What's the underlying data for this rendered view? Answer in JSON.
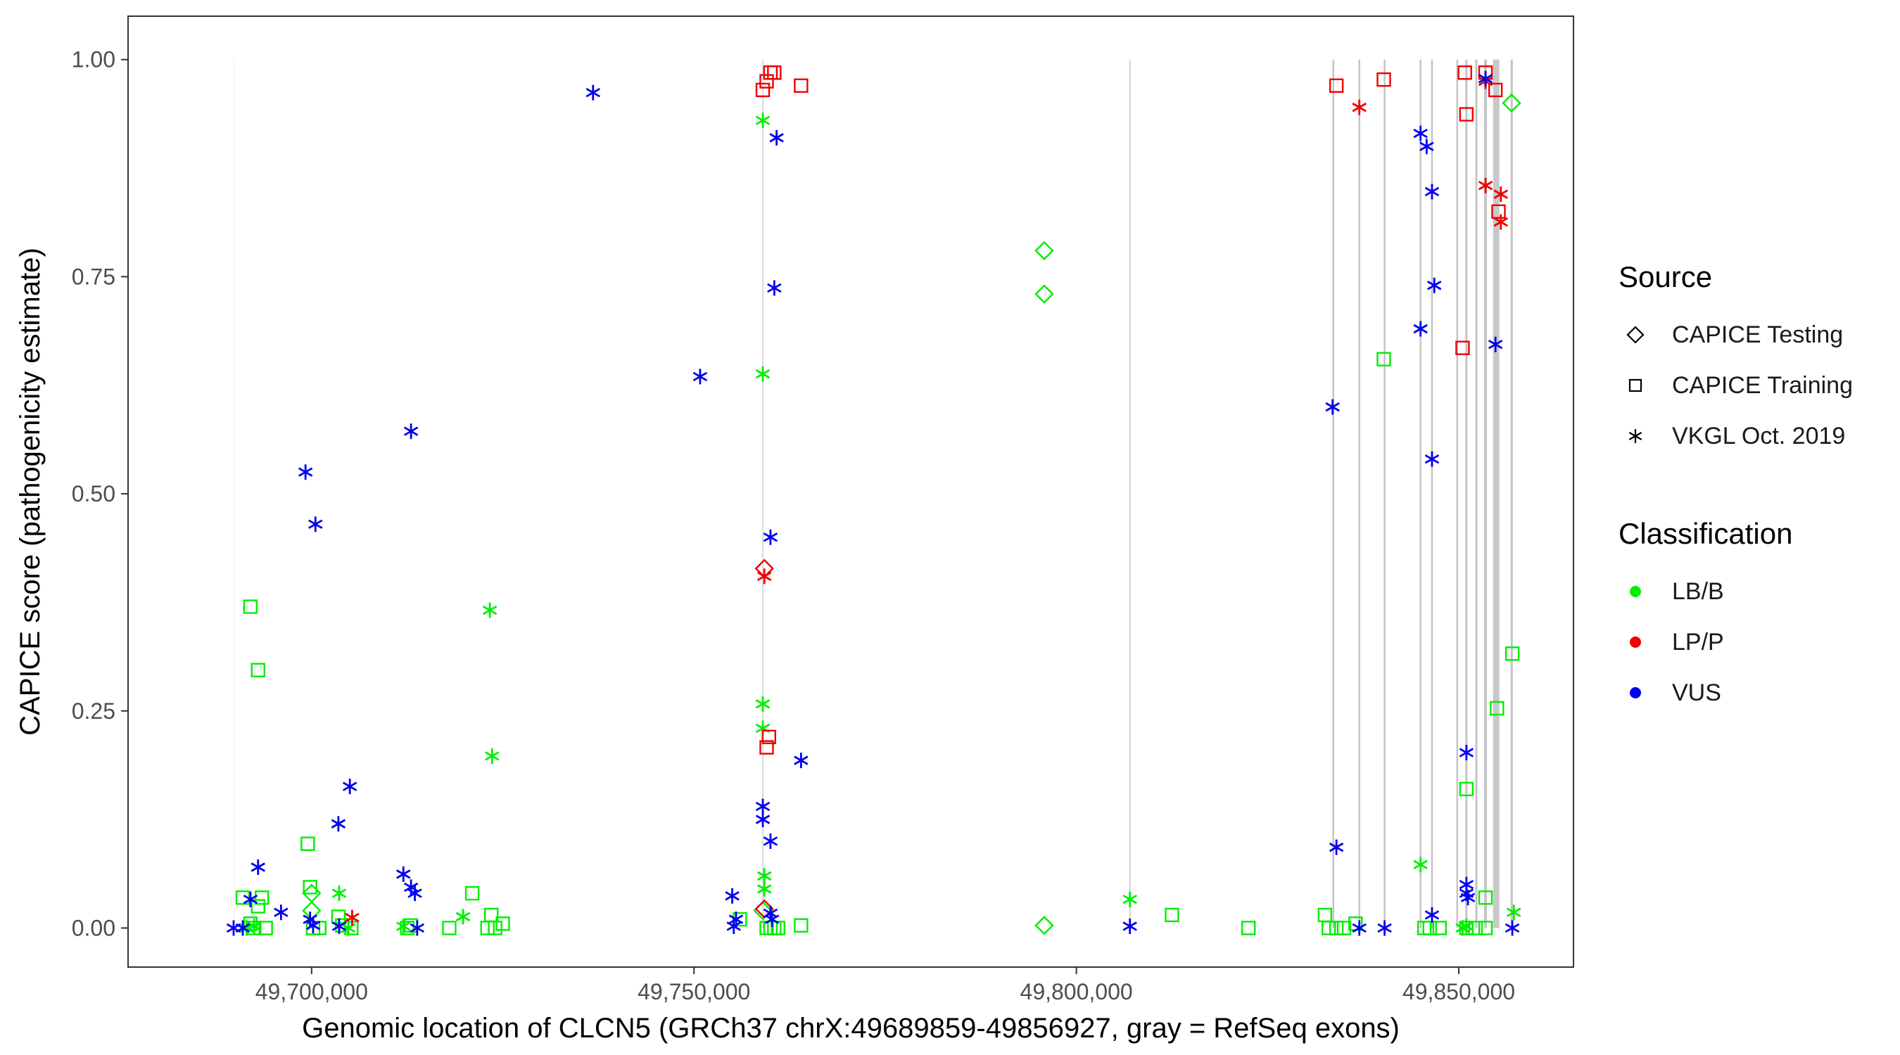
{
  "chart_data": {
    "type": "scatter",
    "xlabel": "Genomic location of CLCN5 (GRCh37 chrX:49689859-49856927, gray = RefSeq exons)",
    "ylabel": "CAPICE score (pathogenicity estimate)",
    "xlim": [
      49676000,
      49865000
    ],
    "ylim": [
      -0.045,
      1.05
    ],
    "x_ticks": [
      {
        "value": 49700000,
        "label": "49,700,000"
      },
      {
        "value": 49750000,
        "label": "49,750,000"
      },
      {
        "value": 49800000,
        "label": "49,800,000"
      },
      {
        "value": 49850000,
        "label": "49,850,000"
      }
    ],
    "y_ticks": [
      {
        "value": 0,
        "label": "0.00"
      },
      {
        "value": 0.25,
        "label": "0.25"
      },
      {
        "value": 0.5,
        "label": "0.50"
      },
      {
        "value": 0.75,
        "label": "0.75"
      },
      {
        "value": 1.0,
        "label": "1.00"
      }
    ],
    "exons": [
      {
        "x": 49689859,
        "w": 0.7,
        "c": "#e6e6e6"
      },
      {
        "x": 49759000,
        "w": 1.5,
        "c": "#cfcfcf"
      },
      {
        "x": 49807000,
        "w": 1.5,
        "c": "#c4c4c4"
      },
      {
        "x": 49833600,
        "w": 2.5,
        "c": "#c4c4c4"
      },
      {
        "x": 49837000,
        "w": 2.5,
        "c": "#c4c4c4"
      },
      {
        "x": 49840300,
        "w": 2.5,
        "c": "#c4c4c4"
      },
      {
        "x": 49845000,
        "w": 2.5,
        "c": "#c4c4c4"
      },
      {
        "x": 49846500,
        "w": 2.5,
        "c": "#c4c4c4"
      },
      {
        "x": 49849800,
        "w": 2.5,
        "c": "#c4c4c4"
      },
      {
        "x": 49851000,
        "w": 3,
        "c": "#c4c4c4"
      },
      {
        "x": 49852300,
        "w": 3,
        "c": "#c4c4c4"
      },
      {
        "x": 49853500,
        "w": 4,
        "c": "#c4c4c4"
      },
      {
        "x": 49854900,
        "w": 9,
        "c": "#c8c8c8"
      },
      {
        "x": 49856927,
        "w": 3,
        "c": "#c4c4c4"
      }
    ],
    "series": [
      {
        "name": "LB/B · CAPICE Testing",
        "classification": "LB/B",
        "source": "CAPICE Testing",
        "color": "#00ee00",
        "shape": "diamond",
        "points": [
          [
            49700000,
            0.04
          ],
          [
            49700000,
            0.02
          ],
          [
            49795800,
            0.78
          ],
          [
            49795800,
            0.73
          ],
          [
            49795800,
            0.003
          ],
          [
            49856900,
            0.95
          ],
          [
            49759000,
            0.02
          ]
        ]
      },
      {
        "name": "LB/B · CAPICE Training",
        "classification": "LB/B",
        "source": "CAPICE Training",
        "color": "#00ee00",
        "shape": "square",
        "points": [
          [
            49692000,
            0.37
          ],
          [
            49693000,
            0.297
          ],
          [
            49691000,
            0.035
          ],
          [
            49692000,
            0.005
          ],
          [
            49692500,
            0.0
          ],
          [
            49693000,
            0.025
          ],
          [
            49693500,
            0.035
          ],
          [
            49694000,
            0.0
          ],
          [
            49699500,
            0.097
          ],
          [
            49699800,
            0.047
          ],
          [
            49700200,
            0.0
          ],
          [
            49701000,
            0.0
          ],
          [
            49703500,
            0.013
          ],
          [
            49704000,
            0.003
          ],
          [
            49705200,
            0.0
          ],
          [
            49712500,
            0.0
          ],
          [
            49713000,
            0.003
          ],
          [
            49718000,
            0.0
          ],
          [
            49721000,
            0.04
          ],
          [
            49723000,
            0.0
          ],
          [
            49723500,
            0.015
          ],
          [
            49724000,
            0.0
          ],
          [
            49725000,
            0.005
          ],
          [
            49756000,
            0.01
          ],
          [
            49759500,
            0.0
          ],
          [
            49760000,
            0.0
          ],
          [
            49760500,
            0.0
          ],
          [
            49761000,
            0.0
          ],
          [
            49764000,
            0.003
          ],
          [
            49812500,
            0.015
          ],
          [
            49822500,
            0.0
          ],
          [
            49832500,
            0.015
          ],
          [
            49833000,
            0.0
          ],
          [
            49834000,
            0.0
          ],
          [
            49835000,
            0.0
          ],
          [
            49836500,
            0.005
          ],
          [
            49840200,
            0.655
          ],
          [
            49845500,
            0.0
          ],
          [
            49846200,
            0.0
          ],
          [
            49847500,
            0.0
          ],
          [
            49851000,
            0.16
          ],
          [
            49851000,
            0.0
          ],
          [
            49852200,
            0.0
          ],
          [
            49853500,
            0.035
          ],
          [
            49853500,
            0.0
          ],
          [
            49855000,
            0.253
          ],
          [
            49857000,
            0.316
          ]
        ]
      },
      {
        "name": "LB/B · VKGL Oct. 2019",
        "classification": "LB/B",
        "source": "VKGL Oct. 2019",
        "color": "#00ee00",
        "shape": "asterisk",
        "points": [
          [
            49691500,
            0.0
          ],
          [
            49692500,
            0.002
          ],
          [
            49703600,
            0.04
          ],
          [
            49704800,
            0.0
          ],
          [
            49712000,
            0.002
          ],
          [
            49719800,
            0.013
          ],
          [
            49723300,
            0.366
          ],
          [
            49723600,
            0.198
          ],
          [
            49759000,
            0.93
          ],
          [
            49759000,
            0.638
          ],
          [
            49759000,
            0.258
          ],
          [
            49759000,
            0.23
          ],
          [
            49759200,
            0.06
          ],
          [
            49759200,
            0.045
          ],
          [
            49807000,
            0.033
          ],
          [
            49845000,
            0.073
          ],
          [
            49850500,
            0.0
          ],
          [
            49851000,
            0.002
          ],
          [
            49857200,
            0.018
          ]
        ]
      },
      {
        "name": "LP/P · CAPICE Testing",
        "classification": "LP/P",
        "source": "CAPICE Testing",
        "color": "#ee0000",
        "shape": "diamond",
        "points": [
          [
            49759200,
            0.414
          ],
          [
            49759200,
            0.022
          ]
        ]
      },
      {
        "name": "LP/P · CAPICE Training",
        "classification": "LP/P",
        "source": "CAPICE Training",
        "color": "#ee0000",
        "shape": "square",
        "points": [
          [
            49759000,
            0.965
          ],
          [
            49759500,
            0.975
          ],
          [
            49760000,
            0.985
          ],
          [
            49760500,
            0.985
          ],
          [
            49764000,
            0.97
          ],
          [
            49759800,
            0.22
          ],
          [
            49759500,
            0.208
          ],
          [
            49834000,
            0.97
          ],
          [
            49840200,
            0.977
          ],
          [
            49850500,
            0.668
          ],
          [
            49850800,
            0.985
          ],
          [
            49851000,
            0.937
          ],
          [
            49853500,
            0.985
          ],
          [
            49854800,
            0.965
          ],
          [
            49855200,
            0.825
          ]
        ]
      },
      {
        "name": "LP/P · VKGL Oct. 2019",
        "classification": "LP/P",
        "source": "VKGL Oct. 2019",
        "color": "#ee0000",
        "shape": "asterisk",
        "points": [
          [
            49705300,
            0.012
          ],
          [
            49759200,
            0.405
          ],
          [
            49837000,
            0.945
          ],
          [
            49853500,
            0.975
          ],
          [
            49853500,
            0.855
          ],
          [
            49855500,
            0.845
          ],
          [
            49855500,
            0.813
          ]
        ]
      },
      {
        "name": "VUS · VKGL Oct. 2019",
        "classification": "VUS",
        "source": "VKGL Oct. 2019",
        "color": "#0000ee",
        "shape": "asterisk",
        "points": [
          [
            49736800,
            0.962
          ],
          [
            49699200,
            0.525
          ],
          [
            49700500,
            0.465
          ],
          [
            49713000,
            0.572
          ],
          [
            49750800,
            0.635
          ],
          [
            49760800,
            0.91
          ],
          [
            49760500,
            0.737
          ],
          [
            49760000,
            0.45
          ],
          [
            49764000,
            0.193
          ],
          [
            49705000,
            0.163
          ],
          [
            49703500,
            0.12
          ],
          [
            49693000,
            0.07
          ],
          [
            49712000,
            0.062
          ],
          [
            49713000,
            0.047
          ],
          [
            49713500,
            0.04
          ],
          [
            49692000,
            0.033
          ],
          [
            49696000,
            0.018
          ],
          [
            49689800,
            0.0
          ],
          [
            49691000,
            0.0
          ],
          [
            49699800,
            0.01
          ],
          [
            49700200,
            0.003
          ],
          [
            49703600,
            0.002
          ],
          [
            49713800,
            0.0
          ],
          [
            49755000,
            0.037
          ],
          [
            49755500,
            0.01
          ],
          [
            49755200,
            0.002
          ],
          [
            49759000,
            0.14
          ],
          [
            49759000,
            0.125
          ],
          [
            49760000,
            0.1
          ],
          [
            49760000,
            0.017
          ],
          [
            49760200,
            0.01
          ],
          [
            49807000,
            0.002
          ],
          [
            49833500,
            0.6
          ],
          [
            49834000,
            0.093
          ],
          [
            49837000,
            0.0
          ],
          [
            49840300,
            0.0
          ],
          [
            49845000,
            0.915
          ],
          [
            49845800,
            0.9
          ],
          [
            49846500,
            0.848
          ],
          [
            49846800,
            0.74
          ],
          [
            49845000,
            0.69
          ],
          [
            49846500,
            0.54
          ],
          [
            49846500,
            0.015
          ],
          [
            49851000,
            0.202
          ],
          [
            49851000,
            0.05
          ],
          [
            49851000,
            0.04
          ],
          [
            49851200,
            0.035
          ],
          [
            49853500,
            0.978
          ],
          [
            49854800,
            0.672
          ],
          [
            49857000,
            0.0
          ]
        ]
      }
    ],
    "legend": {
      "source_title": "Source",
      "source_items": [
        {
          "label": "CAPICE Testing",
          "shape": "diamond"
        },
        {
          "label": "CAPICE Training",
          "shape": "square"
        },
        {
          "label": "VKGL Oct. 2019",
          "shape": "asterisk"
        }
      ],
      "class_title": "Classification",
      "class_items": [
        {
          "label": "LB/B",
          "color": "#00ee00"
        },
        {
          "label": "LP/P",
          "color": "#ee0000"
        },
        {
          "label": "VUS",
          "color": "#0000ee"
        }
      ]
    }
  }
}
